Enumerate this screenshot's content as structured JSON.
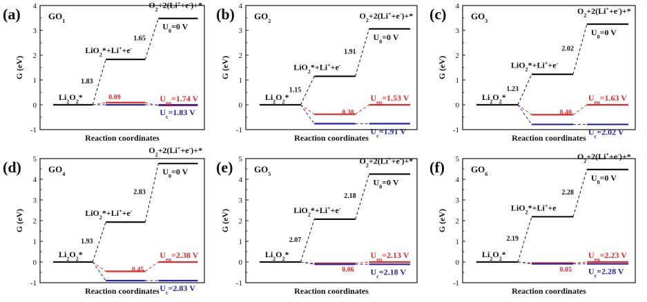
{
  "chart_data": [
    {
      "type": "energy-diagram",
      "panel_label": "(a)",
      "material": {
        "base": "GO",
        "sub": "1"
      },
      "ylabel": "G (eV)",
      "xlabel": "Reaction coordinates",
      "ylim": [
        -1,
        4
      ],
      "yticks": [
        -1,
        0,
        1,
        2,
        3,
        4
      ],
      "levels": {
        "li2o2": 0,
        "lio2": 1.83,
        "o2": 3.48,
        "red_left": 0.09,
        "red_right": -0.03,
        "blue_left": 0,
        "blue_right": 0
      },
      "species": {
        "li2o2": "Li2O2*",
        "lio2": "LiO2*+Li⁺+e⁻",
        "o2": "O2+2(Li⁺+e⁻)+*"
      },
      "step_labels": {
        "step1": "1.83",
        "step2": "1.65",
        "red_step": "0.09"
      },
      "u0": "U0=0 V",
      "ueq": "Ueq=1.74 V",
      "uc": "Uc=1.83 V"
    },
    {
      "type": "energy-diagram",
      "panel_label": "(b)",
      "material": {
        "base": "GO",
        "sub": "2"
      },
      "ylabel": "G (eV)",
      "xlabel": "Reaction coordinates",
      "ylim": [
        -1,
        4
      ],
      "yticks": [
        -1,
        0,
        1,
        2,
        3,
        4
      ],
      "levels": {
        "li2o2": 0,
        "lio2": 1.15,
        "o2": 3.06,
        "red_left": -0.38,
        "red_right": 0,
        "blue_left": -0.76,
        "blue_right": -0.76
      },
      "species": {
        "li2o2": "Li2O2*",
        "lio2": "LiO2*+Li⁺+e⁻",
        "o2": "O2+2(Li⁺+e⁻)+*"
      },
      "step_labels": {
        "step1": "1.15",
        "step2": "1.91",
        "red_step": "0.38"
      },
      "u0": "U0=0 V",
      "ueq": "Ueq=1.53 V",
      "uc": "Uc=1.91 V"
    },
    {
      "type": "energy-diagram",
      "panel_label": "(c)",
      "material": {
        "base": "GO",
        "sub": "3"
      },
      "ylabel": "G (eV)",
      "xlabel": "Reaction coordinates",
      "ylim": [
        -1,
        4
      ],
      "yticks": [
        -1,
        0,
        1,
        2,
        3,
        4
      ],
      "levels": {
        "li2o2": 0,
        "lio2": 1.23,
        "o2": 3.25,
        "red_left": -0.4,
        "red_right": 0,
        "blue_left": -0.79,
        "blue_right": -0.79
      },
      "species": {
        "li2o2": "Li2O2*",
        "lio2": "LiO2*+Li⁺+e⁻",
        "o2": "O2+2(Li⁺+e⁻)+*"
      },
      "step_labels": {
        "step1": "1.23",
        "step2": "2.02",
        "red_step": "0.40"
      },
      "u0": "U0=0 V",
      "ueq": "Ueq=1.63 V",
      "uc": "Uc=2.02 V"
    },
    {
      "type": "energy-diagram",
      "panel_label": "(d)",
      "material": {
        "base": "GO",
        "sub": "4"
      },
      "ylabel": "G (eV)",
      "xlabel": "Reaction coordinates",
      "ylim": [
        -1,
        5
      ],
      "yticks": [
        -1,
        0,
        1,
        2,
        3,
        4,
        5
      ],
      "levels": {
        "li2o2": 0,
        "lio2": 1.93,
        "o2": 4.76,
        "red_left": -0.45,
        "red_right": 0,
        "blue_left": -0.9,
        "blue_right": -0.9
      },
      "species": {
        "li2o2": "Li2O2*",
        "lio2": "LiO2*+Li⁺+e⁻",
        "o2": "O2+2(Li⁺+e⁻)+*"
      },
      "step_labels": {
        "step1": "1.93",
        "step2": "2.83",
        "red_step": "0.45"
      },
      "u0": "U0=0 V",
      "ueq": "Ueq=2.38 V",
      "uc": "Uc=2.83 V"
    },
    {
      "type": "energy-diagram",
      "panel_label": "(e)",
      "material": {
        "base": "GO",
        "sub": "5"
      },
      "ylabel": "G (eV)",
      "xlabel": "Reaction coordinates",
      "ylim": [
        -1,
        5
      ],
      "yticks": [
        -1,
        0,
        1,
        2,
        3,
        4,
        5
      ],
      "levels": {
        "li2o2": 0,
        "lio2": 2.07,
        "o2": 4.25,
        "red_left": -0.06,
        "red_right": 0,
        "blue_left": -0.11,
        "blue_right": -0.11
      },
      "species": {
        "li2o2": "Li2O2*",
        "lio2": "LiO2*+Li⁺+e⁻",
        "o2": "O2+2(Li⁺+e⁻)+*"
      },
      "step_labels": {
        "step1": "2.07",
        "step2": "2.18",
        "red_step": "0.06"
      },
      "u0": "U0=0 V",
      "ueq": "Ueq=2.13 V",
      "uc": "Uc=2.18 V"
    },
    {
      "type": "energy-diagram",
      "panel_label": "(f)",
      "material": {
        "base": "GO",
        "sub": "6"
      },
      "ylabel": "G (eV)",
      "xlabel": "Reaction coordinates",
      "ylim": [
        -1,
        5
      ],
      "yticks": [
        -1,
        0,
        1,
        2,
        3,
        4,
        5
      ],
      "levels": {
        "li2o2": 0,
        "lio2": 2.19,
        "o2": 4.47,
        "red_left": -0.05,
        "red_right": 0,
        "blue_left": -0.09,
        "blue_right": -0.09
      },
      "species": {
        "li2o2": "Li2O2*",
        "lio2": "LiO2*+Li⁺+e",
        "o2": "O2+2(Li⁺+e⁻)+*"
      },
      "step_labels": {
        "step1": "2.19",
        "step2": "2.28",
        "red_step": "0.05"
      },
      "u0": "U0=0 V",
      "ueq": "Ueq=2.23 V",
      "uc": "Uc=2.28 V"
    }
  ],
  "colors": {
    "black": "#111111",
    "red": "#e0282a",
    "blue": "#2323a8"
  }
}
